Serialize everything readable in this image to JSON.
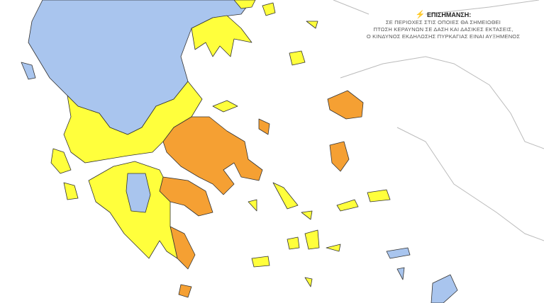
{
  "note": {
    "icon": "lightning-icon",
    "title": "ΕΠΙΣΗΜΑΝΣΗ:",
    "lines": [
      "ΣΕ ΠΕΡΙΟΧΕΣ ΣΤΙΣ ΟΠΟΙΕΣ ΘΑ ΣΗΜΕΙΩΘΕΙ",
      "ΠΤΩΣΗ ΚΕΡΑΥΝΩΝ ΣΕ ΔΑΣΗ ΚΑΙ ΔΑΣΙΚΕΣ ΕΚΤΑΣΕΙΣ,",
      "Ο ΚΙΝΔΥΝΟΣ ΕΚΔΗΛΩΣΗΣ ΠΥΡΚΑΓΙΑΣ ΕΙΝΑΙ ΑΥΞΗΜΕΝΟΣ"
    ]
  },
  "colors": {
    "blue": "#a9c5ee",
    "yellow": "#ffff3c",
    "orange": "#f5a033",
    "outline": "#333333"
  }
}
